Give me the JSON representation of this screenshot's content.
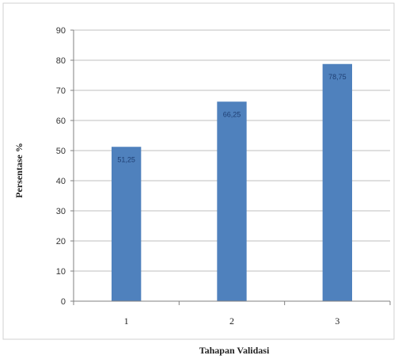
{
  "chart_data": {
    "type": "bar",
    "categories": [
      "1",
      "2",
      "3"
    ],
    "values": [
      51.25,
      66.25,
      78.75
    ],
    "value_labels": [
      "51,25",
      "66,25",
      "78,75"
    ],
    "xlabel": "Tahapan Validasi",
    "ylabel": "Persentase %",
    "ylim": [
      0,
      90
    ],
    "yticks": [
      "0",
      "10",
      "20",
      "30",
      "40",
      "50",
      "60",
      "70",
      "80",
      "90"
    ],
    "grid": true,
    "bar_color": "#4f81bd",
    "grid_color": "#bfbfbf"
  }
}
